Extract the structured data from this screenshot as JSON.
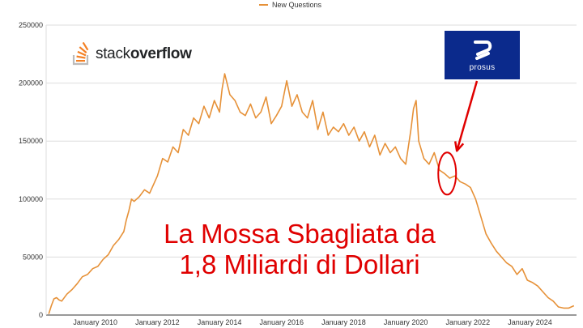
{
  "chart_data": {
    "type": "line",
    "series": [
      {
        "name": "New Questions",
        "color": "#e69138",
        "x": [
          "2008-07",
          "2008-08",
          "2008-09",
          "2008-10",
          "2008-11",
          "2008-12",
          "2009-02",
          "2009-04",
          "2009-06",
          "2009-08",
          "2009-10",
          "2009-12",
          "2010-02",
          "2010-04",
          "2010-06",
          "2010-08",
          "2010-10",
          "2010-12",
          "2011-01",
          "2011-02",
          "2011-03",
          "2011-04",
          "2011-06",
          "2011-08",
          "2011-10",
          "2011-12",
          "2012-01",
          "2012-03",
          "2012-05",
          "2012-07",
          "2012-09",
          "2012-11",
          "2013-01",
          "2013-03",
          "2013-05",
          "2013-07",
          "2013-09",
          "2013-11",
          "2014-01",
          "2014-02",
          "2014-03",
          "2014-05",
          "2014-07",
          "2014-09",
          "2014-11",
          "2015-01",
          "2015-03",
          "2015-05",
          "2015-07",
          "2015-09",
          "2015-11",
          "2016-01",
          "2016-03",
          "2016-05",
          "2016-07",
          "2016-09",
          "2016-11",
          "2017-01",
          "2017-03",
          "2017-05",
          "2017-07",
          "2017-09",
          "2017-11",
          "2018-01",
          "2018-03",
          "2018-05",
          "2018-07",
          "2018-09",
          "2018-11",
          "2019-01",
          "2019-03",
          "2019-05",
          "2019-07",
          "2019-09",
          "2019-11",
          "2020-01",
          "2020-03",
          "2020-04",
          "2020-05",
          "2020-06",
          "2020-08",
          "2020-10",
          "2020-12",
          "2021-02",
          "2021-04",
          "2021-06",
          "2021-08",
          "2021-10",
          "2021-12",
          "2022-02",
          "2022-04",
          "2022-06",
          "2022-08",
          "2022-10",
          "2022-12",
          "2023-02",
          "2023-04",
          "2023-06",
          "2023-08",
          "2023-10",
          "2023-12",
          "2024-02",
          "2024-04",
          "2024-06",
          "2024-08",
          "2024-10",
          "2024-12",
          "2025-02",
          "2025-04",
          "2025-06"
        ],
        "values": [
          1000,
          8000,
          14000,
          15000,
          13000,
          12000,
          18000,
          22000,
          27000,
          33000,
          35000,
          40000,
          42000,
          48000,
          52000,
          60000,
          65000,
          72000,
          82000,
          90000,
          100000,
          98000,
          102000,
          108000,
          105000,
          115000,
          120000,
          135000,
          132000,
          145000,
          140000,
          160000,
          155000,
          170000,
          165000,
          180000,
          170000,
          185000,
          175000,
          195000,
          208000,
          190000,
          185000,
          175000,
          172000,
          182000,
          170000,
          175000,
          188000,
          165000,
          172000,
          180000,
          202000,
          180000,
          190000,
          175000,
          170000,
          185000,
          160000,
          175000,
          155000,
          162000,
          158000,
          165000,
          155000,
          162000,
          150000,
          158000,
          145000,
          155000,
          138000,
          148000,
          140000,
          145000,
          135000,
          130000,
          160000,
          178000,
          185000,
          150000,
          135000,
          130000,
          140000,
          125000,
          122000,
          118000,
          120000,
          115000,
          113000,
          110000,
          100000,
          85000,
          70000,
          62000,
          55000,
          50000,
          45000,
          42000,
          35000,
          40000,
          30000,
          28000,
          25000,
          20000,
          15000,
          12000,
          7000,
          6000,
          6000,
          8000
        ]
      }
    ],
    "x_tick_labels": [
      "January 2010",
      "January 2012",
      "January 2014",
      "January 2016",
      "January 2018",
      "January 2020",
      "January 2022",
      "January 2024"
    ],
    "x_tick_dates": [
      "2010-01",
      "2012-01",
      "2014-01",
      "2016-01",
      "2018-01",
      "2020-01",
      "2022-01",
      "2024-01"
    ],
    "y_tick_labels": [
      "0",
      "50000",
      "100000",
      "150000",
      "200000",
      "250000"
    ],
    "ylim": [
      0,
      250000
    ],
    "xlim": [
      "2008-06",
      "2025-07"
    ],
    "grid": true,
    "legend_position": "top-center",
    "title": "",
    "xlabel": "",
    "ylabel": ""
  },
  "overlay": {
    "headline_line1": "La Mossa Sbagliata da",
    "headline_line2": "1,8 Miliardi di Dollari",
    "headline_color": "#e00000",
    "logo_left": {
      "icon": "stackoverflow-icon",
      "text_light": "stack",
      "text_bold": "overflow"
    },
    "logo_right": {
      "icon": "prosus-icon",
      "text": "prosus",
      "background": "#0b2a8c"
    },
    "highlight": {
      "shape": "ellipse-with-arrow",
      "color": "#e00000",
      "date": "2021-05",
      "value": 122000
    }
  }
}
